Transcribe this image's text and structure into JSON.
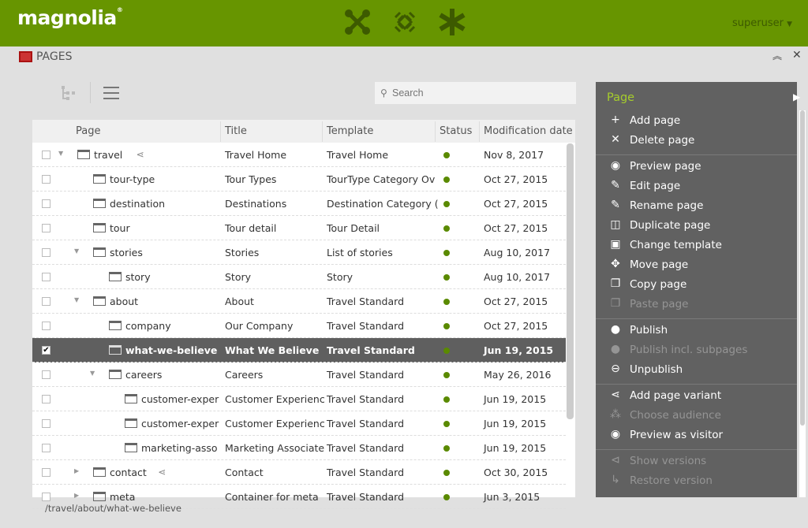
{
  "header": {
    "logo": "magnolia",
    "user": "superuser",
    "app_icons": [
      "apps-icon",
      "pulse-icon",
      "favorites-asterisk-icon"
    ]
  },
  "app": {
    "title": "PAGES"
  },
  "search": {
    "placeholder": "Search"
  },
  "grid": {
    "columns": [
      "Page",
      "Title",
      "Template",
      "Status",
      "Modification date"
    ],
    "rows": [
      {
        "level": 0,
        "toggle": "open",
        "name": "travel",
        "shared": true,
        "title": "Travel Home",
        "template": "Travel Home",
        "status": "published",
        "date": "Nov 8, 2017",
        "checked": false
      },
      {
        "level": 1,
        "toggle": "",
        "name": "tour-type",
        "title": "Tour Types",
        "template": "TourType Category Ov",
        "status": "published",
        "date": "Oct 27, 2015"
      },
      {
        "level": 1,
        "toggle": "",
        "name": "destination",
        "title": "Destinations",
        "template": "Destination Category (",
        "status": "published",
        "date": "Oct 27, 2015"
      },
      {
        "level": 1,
        "toggle": "",
        "name": "tour",
        "title": "Tour detail",
        "template": "Tour Detail",
        "status": "published",
        "date": "Oct 27, 2015"
      },
      {
        "level": 1,
        "toggle": "open",
        "name": "stories",
        "title": "Stories",
        "template": "List of stories",
        "status": "published",
        "date": "Aug 10, 2017"
      },
      {
        "level": 2,
        "toggle": "",
        "name": "story",
        "title": "Story",
        "template": "Story",
        "status": "published",
        "date": "Aug 10, 2017"
      },
      {
        "level": 1,
        "toggle": "open",
        "name": "about",
        "title": "About",
        "template": "Travel Standard",
        "status": "published",
        "date": "Oct 27, 2015"
      },
      {
        "level": 2,
        "toggle": "",
        "name": "company",
        "title": "Our Company",
        "template": "Travel Standard",
        "status": "published",
        "date": "Oct 27, 2015"
      },
      {
        "level": 2,
        "toggle": "",
        "name": "what-we-believe",
        "title": "What We Believe",
        "template": "Travel Standard",
        "status": "published",
        "date": "Jun 19, 2015",
        "checked": true,
        "selected": true
      },
      {
        "level": 2,
        "toggle": "open",
        "name": "careers",
        "title": "Careers",
        "template": "Travel Standard",
        "status": "published",
        "date": "May 26, 2016"
      },
      {
        "level": 3,
        "toggle": "",
        "name": "customer-exper",
        "title": "Customer Experienc",
        "template": "Travel Standard",
        "status": "published",
        "date": "Jun 19, 2015"
      },
      {
        "level": 3,
        "toggle": "",
        "name": "customer-exper",
        "title": "Customer Experienc",
        "template": "Travel Standard",
        "status": "published",
        "date": "Jun 19, 2015"
      },
      {
        "level": 3,
        "toggle": "",
        "name": "marketing-asso",
        "title": "Marketing Associate",
        "template": "Travel Standard",
        "status": "published",
        "date": "Jun 19, 2015"
      },
      {
        "level": 1,
        "toggle": "closed",
        "name": "contact",
        "shared": true,
        "title": "Contact",
        "template": "Travel Standard",
        "status": "published",
        "date": "Oct 30, 2015"
      },
      {
        "level": 1,
        "toggle": "closed",
        "name": "meta",
        "title": "Container for meta",
        "template": "Travel Standard",
        "status": "published",
        "date": "Jun 3, 2015"
      }
    ]
  },
  "status_path": "/travel/about/what-we-believe",
  "actions": {
    "title": "Page",
    "groups": [
      [
        {
          "label": "Add page",
          "icon": "+",
          "name": "add"
        },
        {
          "label": "Delete page",
          "icon": "✕",
          "name": "delete"
        }
      ],
      [
        {
          "label": "Preview page",
          "icon": "◉",
          "name": "preview"
        },
        {
          "label": "Edit page",
          "icon": "✎",
          "name": "edit"
        },
        {
          "label": "Rename page",
          "icon": "✎",
          "name": "rename"
        },
        {
          "label": "Duplicate page",
          "icon": "◫",
          "name": "duplicate"
        },
        {
          "label": "Change template",
          "icon": "▣",
          "name": "change-template"
        },
        {
          "label": "Move page",
          "icon": "✥",
          "name": "move"
        },
        {
          "label": "Copy page",
          "icon": "❐",
          "name": "copy"
        },
        {
          "label": "Paste page",
          "icon": "❐",
          "name": "paste",
          "disabled": true
        }
      ],
      [
        {
          "label": "Publish",
          "icon": "●",
          "name": "publish"
        },
        {
          "label": "Publish incl. subpages",
          "icon": "●",
          "name": "publish-subpages",
          "disabled": true
        },
        {
          "label": "Unpublish",
          "icon": "⊖",
          "name": "unpublish"
        }
      ],
      [
        {
          "label": "Add page variant",
          "icon": "⋖",
          "name": "add-variant"
        },
        {
          "label": "Choose audience",
          "icon": "⁂",
          "name": "choose-audience",
          "disabled": true
        },
        {
          "label": "Preview as visitor",
          "icon": "◉",
          "name": "preview-visitor"
        }
      ],
      [
        {
          "label": "Show versions",
          "icon": "⊲",
          "name": "show-versions",
          "disabled": true
        },
        {
          "label": "Restore version",
          "icon": "↳",
          "name": "restore-version",
          "disabled": true
        }
      ]
    ]
  },
  "colors": {
    "brand": "#679500",
    "accent": "#a6cd2c",
    "status_published": "#5a8a00",
    "selected_row": "#5f5f5f",
    "action_panel": "#616161"
  }
}
